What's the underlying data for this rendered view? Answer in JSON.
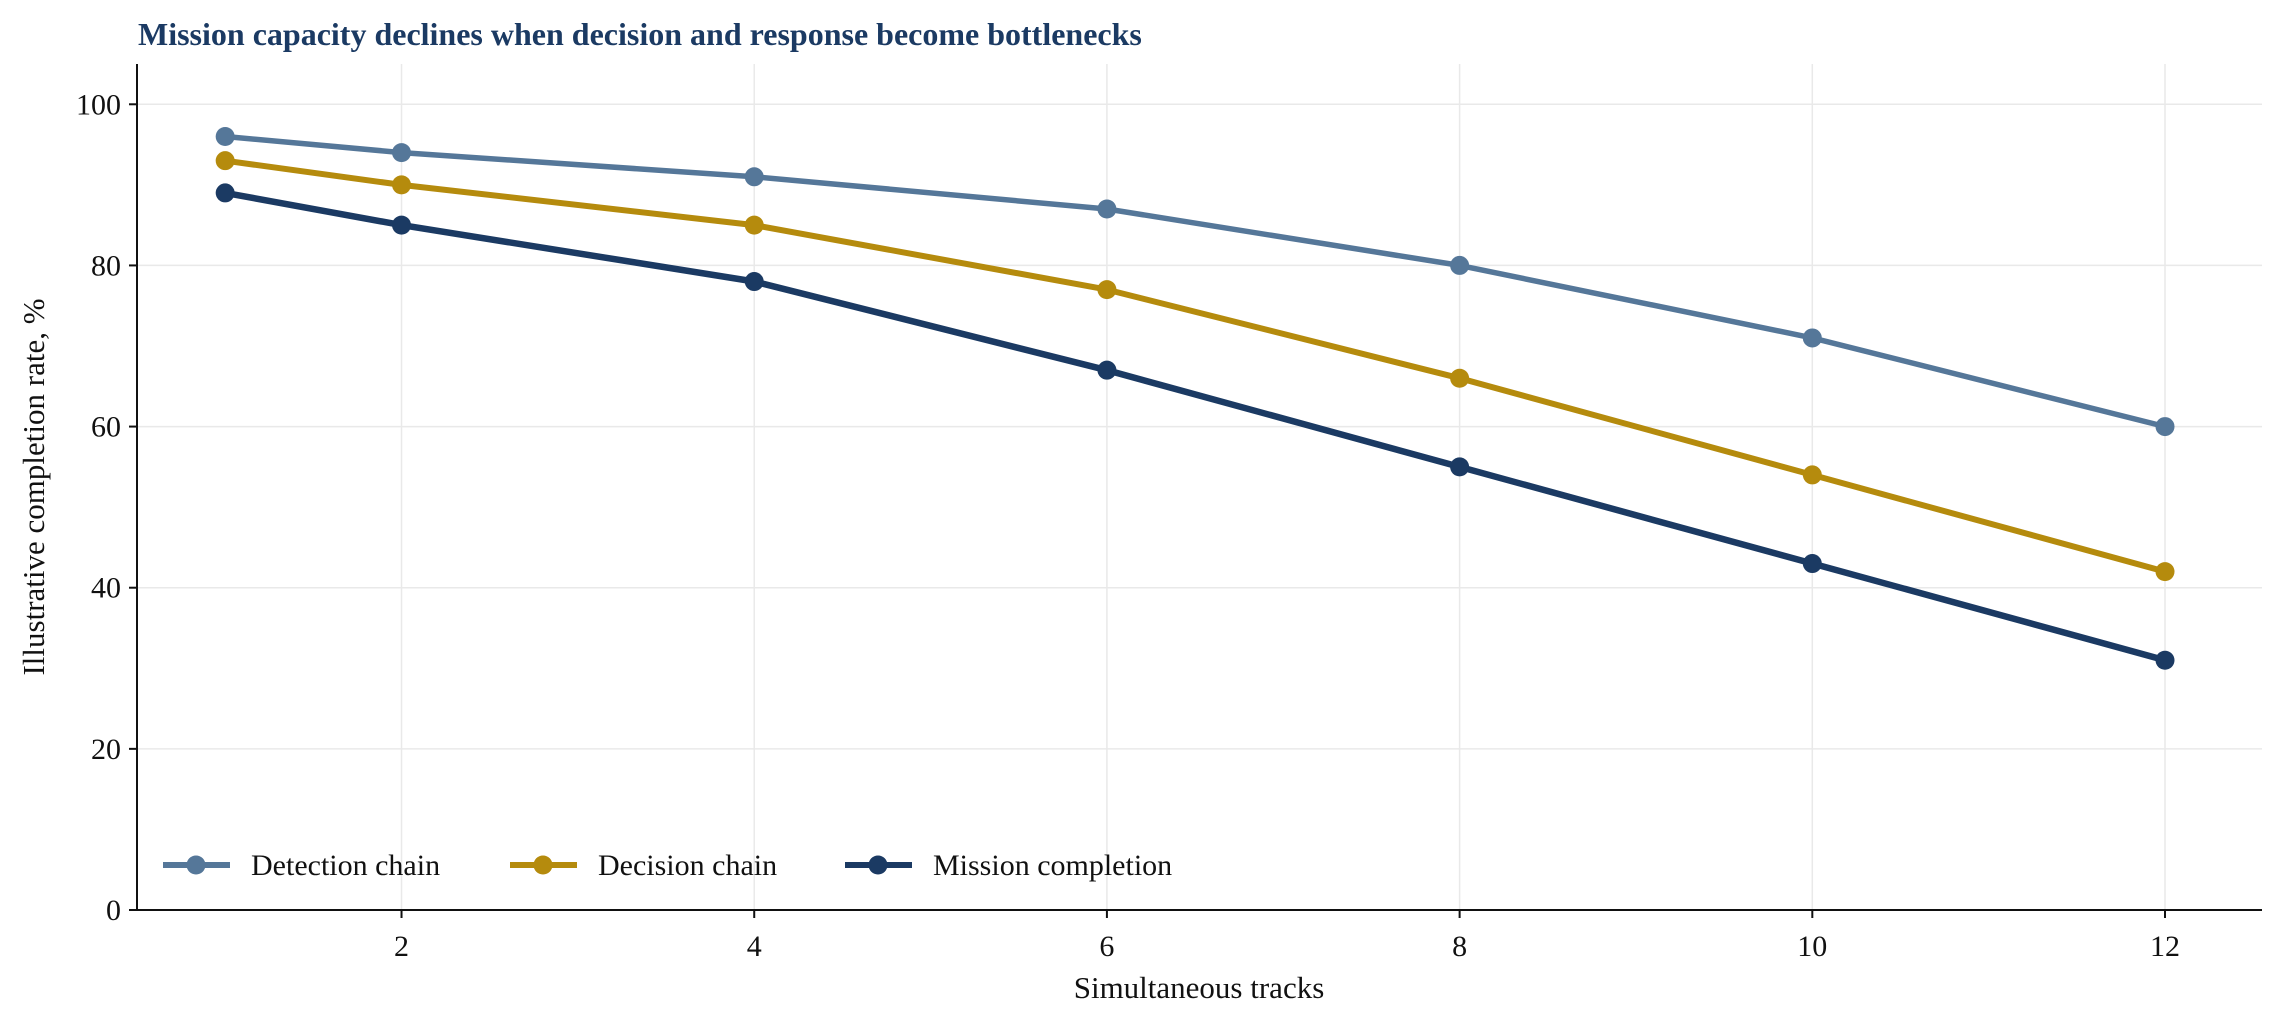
{
  "chart_data": {
    "type": "line",
    "title": "Mission capacity declines when decision and response become bottlenecks",
    "xlabel": "Simultaneous tracks",
    "ylabel": "Illustrative completion rate, %",
    "x": [
      1,
      2,
      4,
      6,
      8,
      10,
      12
    ],
    "xticks": [
      2,
      4,
      6,
      8,
      10,
      12
    ],
    "yticks": [
      0,
      20,
      40,
      60,
      80,
      100
    ],
    "xlim": [
      0.5,
      12.55
    ],
    "ylim": [
      0,
      105
    ],
    "grid": true,
    "legend_position": "bottom-left",
    "series": [
      {
        "name": "Detection chain",
        "color": "#557799",
        "values": [
          96,
          94,
          91,
          87,
          80,
          71,
          60
        ]
      },
      {
        "name": "Decision chain",
        "color": "#b58b0d",
        "values": [
          93,
          90,
          85,
          77,
          66,
          54,
          42
        ]
      },
      {
        "name": "Mission completion",
        "color": "#1b3a63",
        "values": [
          89,
          85,
          78,
          67,
          55,
          43,
          31
        ]
      }
    ]
  }
}
